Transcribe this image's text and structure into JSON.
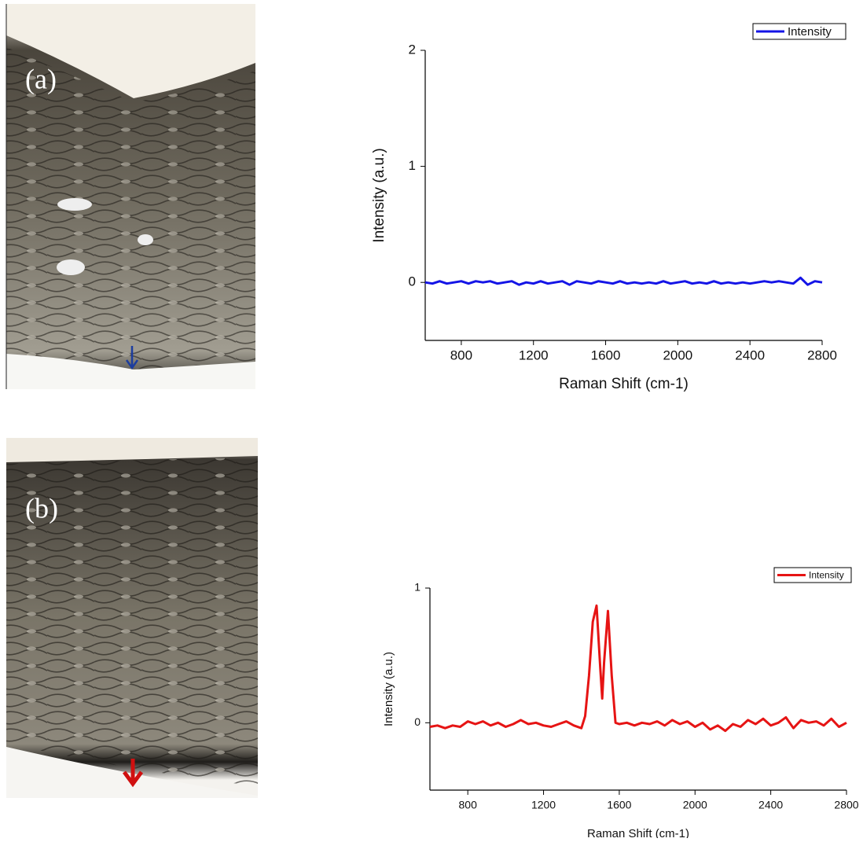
{
  "panels": [
    "(a)",
    "(b)"
  ],
  "chart_data": [
    {
      "type": "line",
      "x_label": "Raman Shift (cm-1)",
      "y_label": "Intensity (a.u.)",
      "x": [
        600,
        640,
        680,
        720,
        760,
        800,
        840,
        880,
        920,
        960,
        1000,
        1040,
        1080,
        1120,
        1160,
        1200,
        1240,
        1280,
        1320,
        1360,
        1400,
        1440,
        1480,
        1520,
        1560,
        1600,
        1640,
        1680,
        1720,
        1760,
        1800,
        1840,
        1880,
        1920,
        1960,
        2000,
        2040,
        2080,
        2120,
        2160,
        2200,
        2240,
        2280,
        2320,
        2360,
        2400,
        2440,
        2480,
        2520,
        2560,
        2600,
        2640,
        2680,
        2720,
        2760,
        2800
      ],
      "series": [
        {
          "name": "Intensity",
          "color": "#1414e6",
          "values": [
            0.0,
            -0.01,
            0.01,
            -0.01,
            0.0,
            0.01,
            -0.01,
            0.01,
            0.0,
            0.01,
            -0.01,
            0.0,
            0.01,
            -0.02,
            0.0,
            -0.01,
            0.01,
            -0.01,
            0.0,
            0.01,
            -0.02,
            0.01,
            0.0,
            -0.01,
            0.01,
            0.0,
            -0.01,
            0.01,
            -0.01,
            0.0,
            -0.01,
            0.0,
            -0.01,
            0.01,
            -0.01,
            0.0,
            0.01,
            -0.01,
            0.0,
            -0.01,
            0.01,
            -0.01,
            0.0,
            -0.01,
            0.0,
            -0.01,
            0.0,
            0.01,
            0.0,
            0.01,
            0.0,
            -0.01,
            0.04,
            -0.02,
            0.01,
            0.0
          ]
        }
      ],
      "xlim": [
        600,
        2800
      ],
      "xticks": [
        800,
        1200,
        1600,
        2000,
        2400,
        2800
      ],
      "ylim": [
        -0.5,
        2
      ],
      "yticks": [
        0,
        1,
        2
      ],
      "legend": "upper right"
    },
    {
      "type": "line",
      "x_label": "Raman Shift (cm-1)",
      "y_label": "Intensity (a.u.)",
      "x": [
        600,
        640,
        680,
        720,
        760,
        800,
        840,
        880,
        920,
        960,
        1000,
        1040,
        1080,
        1120,
        1160,
        1200,
        1240,
        1280,
        1320,
        1360,
        1400,
        1420,
        1440,
        1460,
        1480,
        1500,
        1510,
        1520,
        1540,
        1560,
        1580,
        1600,
        1640,
        1680,
        1720,
        1760,
        1800,
        1840,
        1880,
        1920,
        1960,
        2000,
        2040,
        2080,
        2120,
        2160,
        2200,
        2240,
        2280,
        2320,
        2360,
        2400,
        2440,
        2480,
        2520,
        2560,
        2600,
        2640,
        2680,
        2720,
        2760,
        2800
      ],
      "series": [
        {
          "name": "Intensity",
          "color": "#e61414",
          "values": [
            -0.03,
            -0.02,
            -0.04,
            -0.02,
            -0.03,
            0.01,
            -0.01,
            0.01,
            -0.02,
            0.0,
            -0.03,
            -0.01,
            0.02,
            -0.01,
            0.0,
            -0.02,
            -0.03,
            -0.01,
            0.01,
            -0.02,
            -0.04,
            0.05,
            0.35,
            0.75,
            0.87,
            0.4,
            0.18,
            0.45,
            0.83,
            0.35,
            0.0,
            -0.01,
            0.0,
            -0.02,
            0.0,
            -0.01,
            0.01,
            -0.02,
            0.02,
            -0.01,
            0.01,
            -0.03,
            0.0,
            -0.05,
            -0.02,
            -0.06,
            -0.01,
            -0.03,
            0.02,
            -0.01,
            0.03,
            -0.02,
            0.0,
            0.04,
            -0.04,
            0.02,
            0.0,
            0.01,
            -0.02,
            0.03,
            -0.03,
            0.0
          ]
        }
      ],
      "xlim": [
        600,
        2800
      ],
      "xticks": [
        800,
        1200,
        1600,
        2000,
        2400,
        2800
      ],
      "ylim": [
        -0.5,
        1
      ],
      "yticks": [
        0,
        1
      ],
      "legend": "upper right"
    }
  ]
}
